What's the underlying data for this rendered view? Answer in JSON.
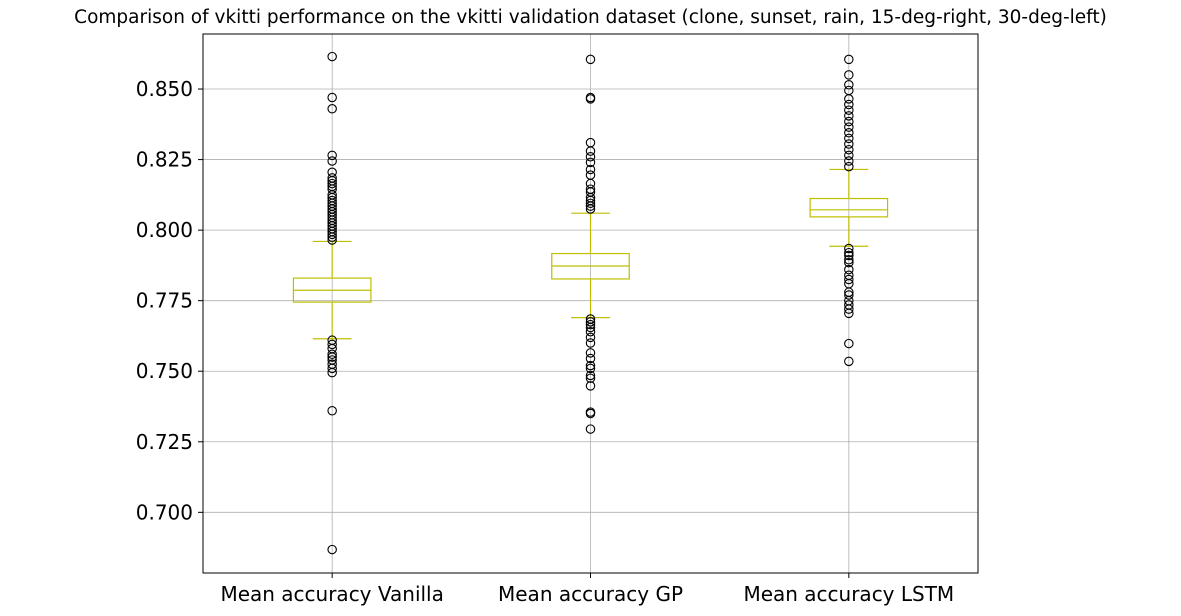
{
  "chart_data": {
    "type": "box",
    "title": "Comparison of vkitti performance on the vkitti validation dataset (clone, sunset, rain, 15-deg-right, 30-deg-left)",
    "xlabel": "",
    "ylabel": "",
    "categories": [
      "Mean accuracy Vanilla",
      "Mean accuracy GP",
      "Mean accuracy LSTM"
    ],
    "ylim": [
      0.6785,
      0.8695
    ],
    "yticks": [
      0.7,
      0.725,
      0.75,
      0.775,
      0.8,
      0.825,
      0.85
    ],
    "ytick_labels": [
      "0.700",
      "0.725",
      "0.750",
      "0.775",
      "0.800",
      "0.825",
      "0.850"
    ],
    "grid": true,
    "box_color": "#bfbf00",
    "flier_color": "#000000",
    "boxes": [
      {
        "name": "Mean accuracy Vanilla",
        "whisker_low": 0.7615,
        "q1": 0.7745,
        "median": 0.7787,
        "q3": 0.783,
        "whisker_high": 0.796,
        "fliers": [
          0.8615,
          0.847,
          0.843,
          0.8265,
          0.8245,
          0.8205,
          0.8185,
          0.8175,
          0.8165,
          0.8155,
          0.8145,
          0.8125,
          0.8115,
          0.8105,
          0.8095,
          0.8085,
          0.8075,
          0.8065,
          0.8055,
          0.8045,
          0.8035,
          0.8025,
          0.8015,
          0.8005,
          0.7995,
          0.7985,
          0.7975,
          0.7965,
          0.761,
          0.7595,
          0.758,
          0.756,
          0.755,
          0.754,
          0.7525,
          0.751,
          0.7495,
          0.736,
          0.6868
        ]
      },
      {
        "name": "Mean accuracy GP",
        "whisker_low": 0.769,
        "q1": 0.7827,
        "median": 0.7873,
        "q3": 0.7917,
        "whisker_high": 0.806,
        "fliers": [
          0.8605,
          0.847,
          0.8465,
          0.831,
          0.828,
          0.826,
          0.824,
          0.8215,
          0.8195,
          0.8165,
          0.8145,
          0.8135,
          0.8115,
          0.8105,
          0.8095,
          0.8085,
          0.8075,
          0.7685,
          0.7675,
          0.7665,
          0.7655,
          0.764,
          0.762,
          0.76,
          0.7565,
          0.7545,
          0.752,
          0.751,
          0.7485,
          0.7475,
          0.7448,
          0.7355,
          0.735,
          0.7295
        ]
      },
      {
        "name": "Mean accuracy LSTM",
        "whisker_low": 0.7943,
        "q1": 0.8047,
        "median": 0.8072,
        "q3": 0.8112,
        "whisker_high": 0.8215,
        "fliers": [
          0.8605,
          0.855,
          0.8515,
          0.8495,
          0.8465,
          0.8445,
          0.8425,
          0.8405,
          0.8385,
          0.8365,
          0.8345,
          0.8325,
          0.8305,
          0.8285,
          0.8265,
          0.8245,
          0.8225,
          0.7935,
          0.792,
          0.791,
          0.7895,
          0.7885,
          0.786,
          0.784,
          0.7825,
          0.781,
          0.778,
          0.777,
          0.775,
          0.7735,
          0.772,
          0.7705,
          0.7598,
          0.7535
        ]
      }
    ]
  }
}
